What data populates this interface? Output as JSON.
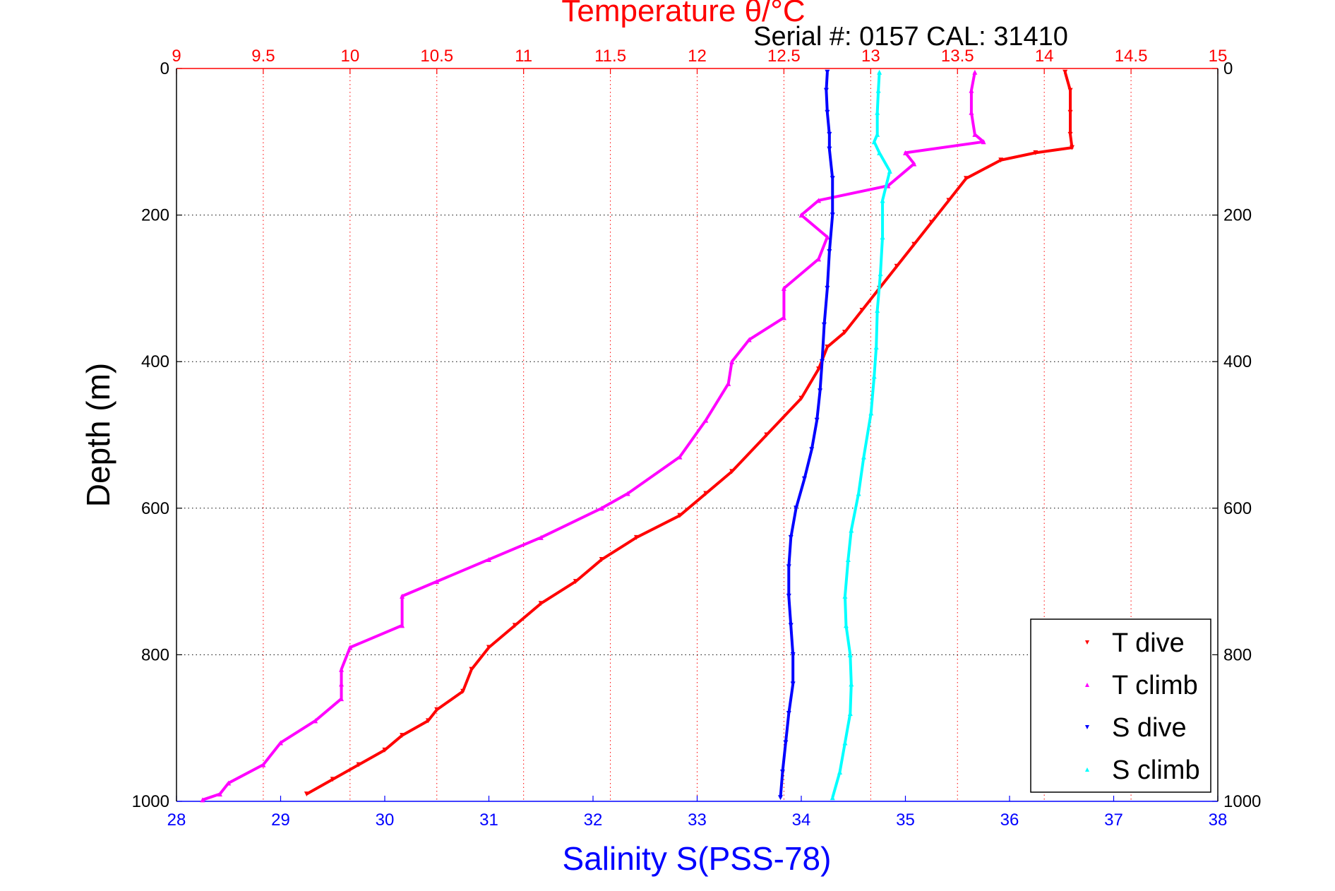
{
  "chart_data": {
    "type": "scatter",
    "title": "Temperature θ/°C",
    "subtitle": "Serial #: 0157  CAL: 31410",
    "ylabel": "Depth (m)",
    "xlabel_bottom": "Salinity S(PSS-78)",
    "xlabel_top": "Temperature θ/°C",
    "temperature_axis": {
      "range": [
        9,
        15
      ],
      "ticks": [
        "9",
        "9.5",
        "10",
        "10.5",
        "11",
        "11.5",
        "12",
        "12.5",
        "13",
        "13.5",
        "14",
        "14.5",
        "15"
      ],
      "color": "#ff0000"
    },
    "salinity_axis": {
      "range": [
        28,
        38
      ],
      "ticks": [
        "28",
        "29",
        "30",
        "31",
        "32",
        "33",
        "34",
        "35",
        "36",
        "37",
        "38"
      ],
      "color": "#0000ff"
    },
    "depth_axis": {
      "range": [
        0,
        1000
      ],
      "reversed": true,
      "ticks": [
        "0",
        "200",
        "400",
        "600",
        "800",
        "1000"
      ]
    },
    "grid": true,
    "legend_position": "bottom-right",
    "series": [
      {
        "name": "T dive",
        "axis": "temperature",
        "color": "#ff0000",
        "marker": "triangle-down",
        "x": [
          14.12,
          14.15,
          14.15,
          14.15,
          14.16,
          13.95,
          13.75,
          13.55,
          13.45,
          13.35,
          13.25,
          13.15,
          13.05,
          12.95,
          12.85,
          12.75,
          12.7,
          12.6,
          12.4,
          12.2,
          12.05,
          11.9,
          11.65,
          11.45,
          11.3,
          11.1,
          10.95,
          10.8,
          10.7,
          10.65,
          10.5,
          10.45,
          10.3,
          10.2,
          10.05,
          9.9,
          9.75
        ],
        "y": [
          5,
          30,
          60,
          90,
          108,
          115,
          125,
          150,
          180,
          210,
          240,
          270,
          300,
          330,
          360,
          380,
          410,
          450,
          500,
          550,
          580,
          610,
          640,
          670,
          700,
          730,
          760,
          790,
          820,
          850,
          875,
          890,
          910,
          930,
          950,
          970,
          990
        ]
      },
      {
        "name": "T climb",
        "axis": "temperature",
        "color": "#ff00ff",
        "marker": "triangle-up",
        "x": [
          13.6,
          13.58,
          13.58,
          13.6,
          13.65,
          13.2,
          13.25,
          13.1,
          12.7,
          12.6,
          12.75,
          12.7,
          12.5,
          12.5,
          12.3,
          12.2,
          12.18,
          12.05,
          11.9,
          11.6,
          11.45,
          11.1,
          10.8,
          10.5,
          10.3,
          10.3,
          10.0,
          9.95,
          9.95,
          9.95,
          9.8,
          9.6,
          9.5,
          9.3,
          9.25,
          9.15
        ],
        "y": [
          5,
          30,
          60,
          90,
          100,
          115,
          130,
          160,
          180,
          200,
          230,
          260,
          300,
          340,
          370,
          400,
          430,
          480,
          530,
          580,
          600,
          640,
          670,
          700,
          720,
          760,
          790,
          820,
          840,
          860,
          890,
          920,
          950,
          975,
          990,
          998
        ]
      },
      {
        "name": "S dive",
        "axis": "salinity",
        "color": "#0000ff",
        "marker": "triangle-down",
        "x": [
          34.25,
          34.24,
          34.25,
          34.27,
          34.27,
          34.3,
          34.3,
          34.27,
          34.25,
          34.22,
          34.2,
          34.18,
          34.15,
          34.1,
          34.03,
          33.95,
          33.9,
          33.88,
          33.88,
          33.9,
          33.92,
          33.92,
          33.88,
          33.85,
          33.82,
          33.8
        ],
        "y": [
          5,
          30,
          60,
          90,
          110,
          150,
          200,
          250,
          300,
          350,
          400,
          440,
          480,
          520,
          560,
          600,
          640,
          680,
          720,
          760,
          800,
          840,
          880,
          920,
          960,
          995
        ]
      },
      {
        "name": "S climb",
        "axis": "salinity",
        "color": "#00ffff",
        "marker": "triangle-up",
        "x": [
          34.75,
          34.74,
          34.73,
          34.73,
          34.7,
          34.75,
          34.85,
          34.78,
          34.78,
          34.76,
          34.73,
          34.72,
          34.7,
          34.67,
          34.6,
          34.55,
          34.48,
          34.45,
          34.42,
          34.43,
          34.47,
          34.48,
          34.47,
          34.42,
          34.37,
          34.3
        ],
        "y": [
          5,
          30,
          60,
          90,
          100,
          115,
          140,
          180,
          230,
          280,
          330,
          380,
          420,
          470,
          530,
          580,
          630,
          670,
          720,
          760,
          800,
          840,
          880,
          920,
          960,
          995
        ]
      }
    ]
  }
}
